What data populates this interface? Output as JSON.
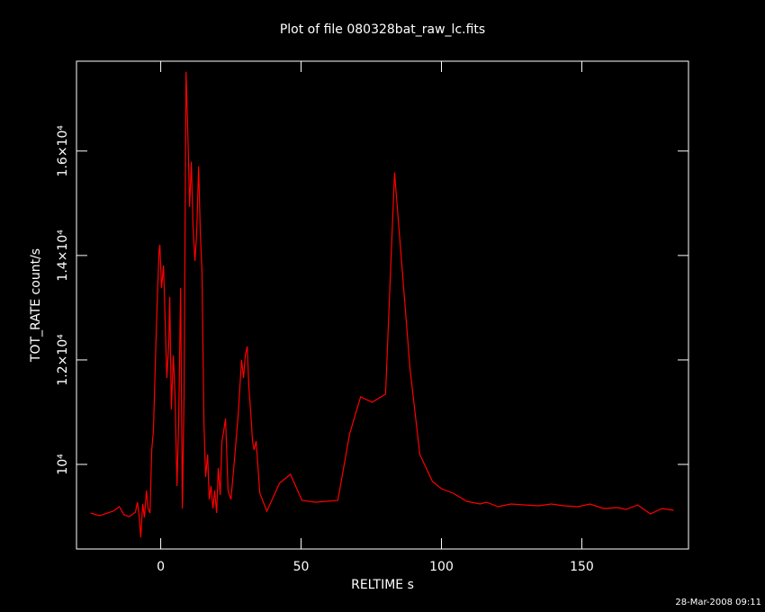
{
  "chart_data": {
    "type": "line",
    "title": "Plot of file 080328bat_raw_lc.fits",
    "x_label": "RELTIME  s",
    "y_label": "TOT_RATE  count/s",
    "footer": "28-Mar-2008 09:11",
    "xlim": [
      -30,
      188
    ],
    "ylim": [
      8380,
      17720
    ],
    "xticks": [
      0,
      50,
      100,
      150
    ],
    "yticks": [
      {
        "value": 10000,
        "label": "10⁴"
      },
      {
        "value": 12000,
        "label": "1.2×10⁴"
      },
      {
        "value": 14000,
        "label": "1.4×10⁴"
      },
      {
        "value": 16000,
        "label": "1.6×10⁴"
      }
    ],
    "series": [
      {
        "color": "#ff0000",
        "x": [
          -25,
          -21.8,
          -17,
          -14.7,
          -13.1,
          -11.2,
          -9,
          -8.3,
          -7.7,
          -7.1,
          -6.4,
          -5.8,
          -5.1,
          -4.5,
          -3.8,
          -3.2,
          -2.6,
          -1.9,
          -1.3,
          -0.6,
          -0.3,
          0.3,
          1.0,
          1.6,
          2.2,
          2.9,
          3.2,
          3.8,
          4.5,
          5.1,
          5.8,
          6.4,
          7.1,
          7.7,
          8.3,
          9.0,
          9.6,
          10.3,
          10.9,
          11.5,
          12.2,
          12.8,
          13.5,
          14.1,
          14.7,
          15.4,
          16.0,
          16.7,
          17.3,
          17.9,
          18.6,
          19.2,
          19.9,
          20.5,
          21.2,
          21.8,
          22.4,
          23.1,
          24.0,
          25.0,
          26.3,
          27.6,
          28.8,
          29.5,
          30.1,
          30.8,
          31.4,
          32.1,
          32.7,
          33.3,
          34.0,
          35.3,
          37.8,
          42.3,
          46.2,
          50.3,
          55.1,
          63.1,
          67.3,
          71.2,
          75.3,
          80.1,
          83.3,
          88.8,
          92.3,
          96.8,
          100,
          104.2,
          109,
          113.8,
          116,
          120.2,
          124.7,
          129.5,
          134.6,
          139.1,
          143.6,
          148.7,
          152.9,
          157.7,
          162.8,
          165.7,
          169.9,
          174.4,
          178.5,
          182.7
        ],
        "values": [
          9069,
          9017,
          9103,
          9190,
          9034,
          9000,
          9086,
          9276,
          9017,
          8603,
          9241,
          8983,
          9500,
          9155,
          9069,
          10276,
          10655,
          12000,
          13034,
          14069,
          14207,
          13379,
          13810,
          12690,
          11655,
          12345,
          13207,
          11052,
          12086,
          11310,
          9586,
          10793,
          13379,
          9155,
          11310,
          17517,
          16483,
          14931,
          15793,
          14586,
          13897,
          14414,
          15707,
          14414,
          13724,
          10793,
          9759,
          10190,
          9328,
          9586,
          9155,
          9500,
          9069,
          9931,
          9414,
          10448,
          10621,
          10879,
          9500,
          9328,
          10103,
          10966,
          12000,
          11655,
          12086,
          12259,
          11483,
          10966,
          10448,
          10276,
          10448,
          9448,
          9103,
          9638,
          9810,
          9310,
          9276,
          9310,
          10586,
          11293,
          11190,
          11345,
          15586,
          11828,
          10190,
          9672,
          9534,
          9448,
          9293,
          9241,
          9276,
          9190,
          9241,
          9224,
          9207,
          9241,
          9207,
          9190,
          9241,
          9155,
          9172,
          9138,
          9224,
          9052,
          9155,
          9121
        ]
      }
    ]
  }
}
